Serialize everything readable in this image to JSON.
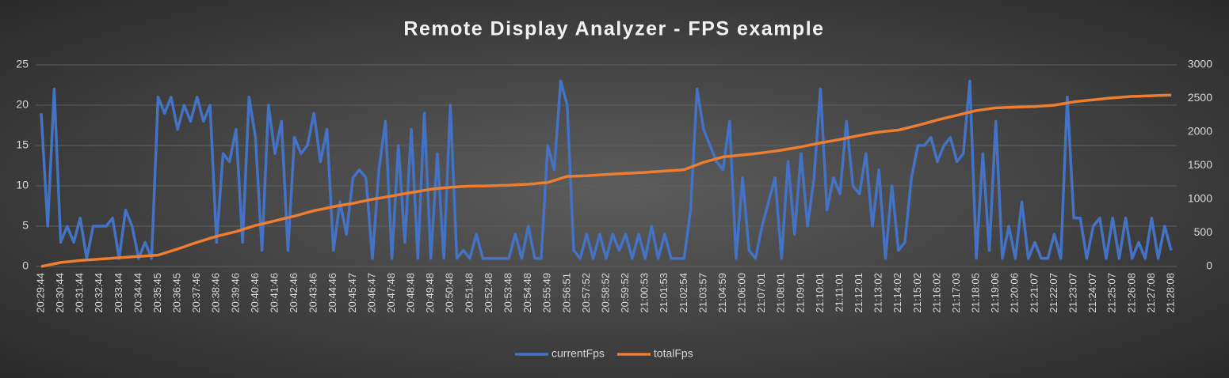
{
  "chart_data": {
    "type": "line",
    "title": "Remote Display Analyzer - FPS example",
    "categories": [
      "20:29:44",
      null,
      null,
      "20:30:44",
      null,
      null,
      "20:31:44",
      null,
      null,
      "20:32:44",
      null,
      null,
      "20:33:44",
      null,
      null,
      "20:34:44",
      null,
      null,
      "20:35:45",
      null,
      null,
      "20:36:45",
      null,
      null,
      "20:37:46",
      null,
      null,
      "20:38:46",
      null,
      null,
      "20:39:46",
      null,
      null,
      "20:40:46",
      null,
      null,
      "20:41:46",
      null,
      null,
      "20:42:46",
      null,
      null,
      "20:43:46",
      null,
      null,
      "20:44:46",
      null,
      null,
      "20:45:47",
      null,
      null,
      "20:46:47",
      null,
      null,
      "20:47:48",
      null,
      null,
      "20:48:48",
      null,
      null,
      "20:49:48",
      null,
      null,
      "20:50:48",
      null,
      null,
      "20:51:48",
      null,
      null,
      "20:52:48",
      null,
      null,
      "20:53:48",
      null,
      null,
      "20:54:48",
      null,
      null,
      "20:55:49",
      null,
      null,
      "20:56:51",
      null,
      null,
      "20:57:52",
      null,
      null,
      "20:58:52",
      null,
      null,
      "20:59:52",
      null,
      null,
      "21:00:53",
      null,
      null,
      "21:01:53",
      null,
      null,
      "21:02:54",
      null,
      null,
      "21:03:57",
      null,
      null,
      "21:04:59",
      null,
      null,
      "21:06:00",
      null,
      null,
      "21:07:01",
      null,
      null,
      "21:08:01",
      null,
      null,
      "21:09:01",
      null,
      null,
      "21:10:01",
      null,
      null,
      "21:11:01",
      null,
      null,
      "21:12:01",
      null,
      null,
      "21:13:02",
      null,
      null,
      "21:14:02",
      null,
      null,
      "21:15:02",
      null,
      null,
      "21:16:02",
      null,
      null,
      "21:17:03",
      null,
      null,
      "21:18:05",
      null,
      null,
      "21:19:06",
      null,
      null,
      "21:20:06",
      null,
      null,
      "21:21:07",
      null,
      null,
      "21:22:07",
      null,
      null,
      "21:23:07",
      null,
      null,
      "21:24:07",
      null,
      null,
      "21:25:07",
      null,
      null,
      "21:26:08",
      null,
      null,
      "21:27:08",
      null,
      null,
      "21:28:08"
    ],
    "series": [
      {
        "name": "currentFps",
        "color": "#4472c4",
        "values": [
          19,
          5,
          22,
          3,
          5,
          3,
          6,
          1,
          5,
          5,
          5,
          6,
          1,
          7,
          5,
          1,
          3,
          1,
          21,
          19,
          21,
          17,
          20,
          18,
          21,
          18,
          20,
          3,
          14,
          13,
          17,
          3,
          21,
          16,
          2,
          20,
          14,
          18,
          2,
          16,
          14,
          15,
          19,
          13,
          17,
          2,
          8,
          4,
          11,
          12,
          11,
          1,
          12,
          18,
          1,
          15,
          3,
          17,
          1,
          19,
          1,
          14,
          1,
          20,
          1,
          2,
          1,
          4,
          1,
          1,
          1,
          1,
          1,
          4,
          1,
          5,
          1,
          1,
          15,
          12,
          23,
          20,
          2,
          1,
          4,
          1,
          4,
          1,
          4,
          2,
          4,
          1,
          4,
          1,
          5,
          1,
          4,
          1,
          1,
          1,
          7,
          22,
          17,
          15,
          13,
          12,
          18,
          1,
          11,
          2,
          1,
          5,
          8,
          11,
          1,
          13,
          4,
          14,
          5,
          11,
          22,
          7,
          11,
          9,
          18,
          10,
          9,
          14,
          5,
          12,
          1,
          10,
          2,
          3,
          11,
          15,
          15,
          16,
          13,
          15,
          16,
          13,
          14,
          23,
          1,
          14,
          2,
          18,
          1,
          5,
          1,
          8,
          1,
          3,
          1,
          1,
          4,
          1,
          21,
          6,
          6,
          1,
          5,
          6,
          1,
          6,
          1,
          6,
          1,
          3,
          1,
          6,
          1,
          5,
          2
        ]
      },
      {
        "name": "totalFps",
        "color": "#ed7d31",
        "axis": "y2",
        "values": [
          0,
          20,
          40,
          60,
          70,
          80,
          90,
          97,
          103,
          110,
          117,
          123,
          130,
          137,
          143,
          150,
          157,
          163,
          170,
          200,
          230,
          260,
          293,
          327,
          360,
          390,
          420,
          450,
          473,
          497,
          520,
          550,
          580,
          610,
          633,
          657,
          680,
          703,
          727,
          750,
          777,
          803,
          830,
          850,
          870,
          890,
          907,
          923,
          940,
          960,
          980,
          1000,
          1017,
          1033,
          1050,
          1067,
          1083,
          1100,
          1117,
          1133,
          1150,
          1160,
          1170,
          1180,
          1185,
          1190,
          1195,
          1197,
          1198,
          1200,
          1203,
          1207,
          1210,
          1215,
          1220,
          1225,
          1233,
          1242,
          1250,
          1280,
          1310,
          1340,
          1343,
          1347,
          1350,
          1357,
          1363,
          1370,
          1375,
          1380,
          1385,
          1390,
          1395,
          1400,
          1407,
          1413,
          1420,
          1427,
          1433,
          1440,
          1477,
          1513,
          1550,
          1577,
          1603,
          1630,
          1640,
          1650,
          1660,
          1670,
          1680,
          1690,
          1703,
          1717,
          1730,
          1747,
          1763,
          1780,
          1800,
          1820,
          1840,
          1857,
          1873,
          1890,
          1910,
          1930,
          1950,
          1967,
          1983,
          2000,
          2010,
          2020,
          2030,
          2053,
          2077,
          2100,
          2127,
          2153,
          2180,
          2203,
          2227,
          2250,
          2273,
          2297,
          2320,
          2333,
          2347,
          2360,
          2363,
          2367,
          2370,
          2373,
          2377,
          2380,
          2387,
          2393,
          2400,
          2417,
          2433,
          2450,
          2460,
          2470,
          2480,
          2490,
          2500,
          2510,
          2517,
          2523,
          2530,
          2533,
          2537,
          2540,
          2543,
          2547,
          2550
        ]
      }
    ],
    "ylim": [
      0,
      25
    ],
    "yticks": [
      0,
      5,
      10,
      15,
      20,
      25
    ],
    "y2lim": [
      0,
      3000
    ],
    "y2ticks": [
      0,
      500,
      1000,
      1500,
      2000,
      2500,
      3000
    ],
    "grid": true,
    "legend": "bottom"
  }
}
